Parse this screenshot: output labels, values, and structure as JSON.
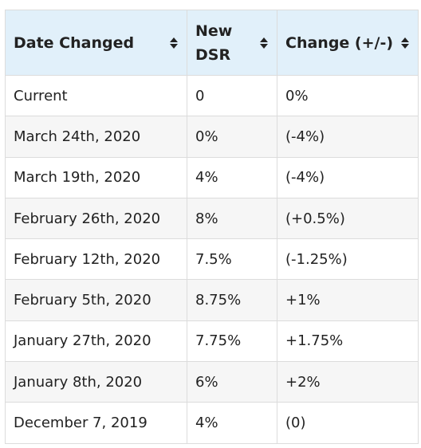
{
  "table": {
    "headers": [
      {
        "label": "Date Changed",
        "icon": "sort-icon"
      },
      {
        "label": "New DSR",
        "icon": "sort-icon"
      },
      {
        "label": "Change (+/-)",
        "icon": "sort-icon"
      }
    ],
    "rows": [
      {
        "date": "Current",
        "dsr": "0",
        "change": "0%"
      },
      {
        "date": "March 24th, 2020",
        "dsr": "0%",
        "change": "(-4%)"
      },
      {
        "date": "March 19th, 2020",
        "dsr": "4%",
        "change": "(-4%)"
      },
      {
        "date": "February 26th, 2020",
        "dsr": "8%",
        "change": "(+0.5%)"
      },
      {
        "date": "February 12th, 2020",
        "dsr": "7.5%",
        "change": "(-1.25%)"
      },
      {
        "date": "February 5th, 2020",
        "dsr": "8.75%",
        "change": "+1%"
      },
      {
        "date": "January 27th, 2020",
        "dsr": "7.75%",
        "change": "+1.75%"
      },
      {
        "date": "January 8th, 2020",
        "dsr": "6%",
        "change": "+2%"
      },
      {
        "date": "December 7, 2019",
        "dsr": "4%",
        "change": "(0)"
      }
    ]
  },
  "colors": {
    "header_bg": "#e1f0fa",
    "row_alt_bg": "#f6f6f6",
    "border": "#dcdcdc"
  }
}
